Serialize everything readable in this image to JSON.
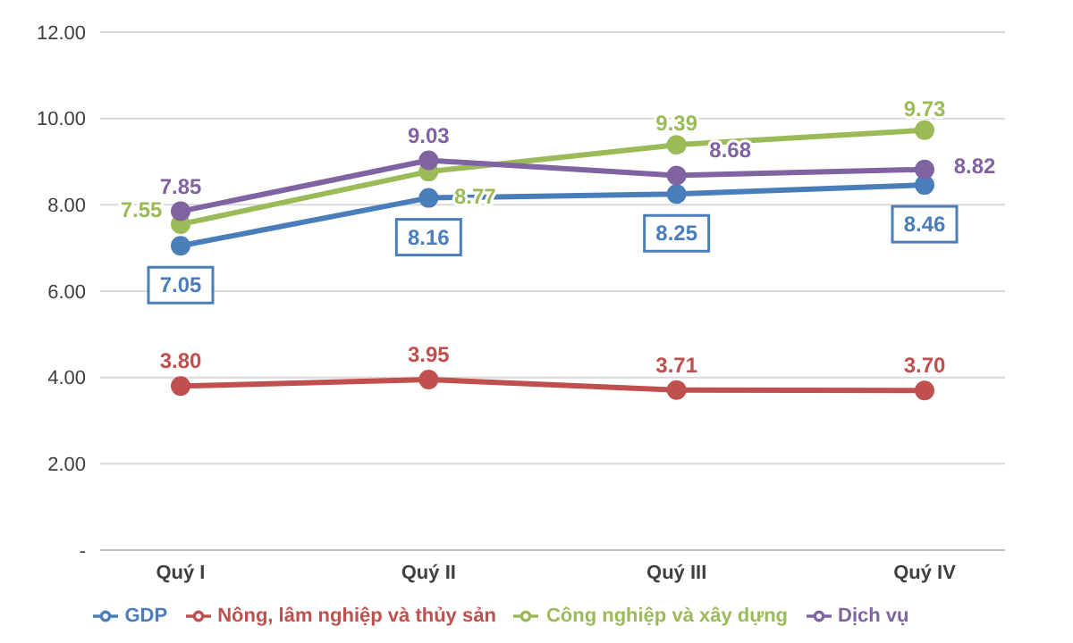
{
  "chart_data": {
    "type": "line",
    "categories": [
      "Quý I",
      "Quý II",
      "Quý III",
      "Quý IV"
    ],
    "series": [
      {
        "name": "GDP",
        "color": "#4a7ebb",
        "values": [
          7.05,
          8.16,
          8.25,
          8.46
        ],
        "value_labels": [
          "7.05",
          "8.16",
          "8.25",
          "8.46"
        ]
      },
      {
        "name": "Nông, lâm nghiệp và thủy sản",
        "color": "#c0504d",
        "values": [
          3.8,
          3.95,
          3.71,
          3.7
        ],
        "value_labels": [
          "3.80",
          "3.95",
          "3.71",
          "3.70"
        ]
      },
      {
        "name": "Công nghiệp và xây dựng",
        "color": "#9bbb59",
        "values": [
          7.55,
          8.77,
          9.39,
          9.73
        ],
        "value_labels": [
          "7.55",
          "8.77",
          "9.39",
          "9.73"
        ]
      },
      {
        "name": "Dịch vụ",
        "color": "#8064a2",
        "values": [
          7.85,
          9.03,
          8.68,
          8.82
        ],
        "value_labels": [
          "7.85",
          "9.03",
          "8.68",
          "8.82"
        ]
      }
    ],
    "ylim": [
      0,
      12
    ],
    "yticks": [
      {
        "value": 0,
        "label": "-"
      },
      {
        "value": 2,
        "label": "2.00"
      },
      {
        "value": 4,
        "label": "4.00"
      },
      {
        "value": 6,
        "label": "6.00"
      },
      {
        "value": 8,
        "label": "8.00"
      },
      {
        "value": 10,
        "label": "10.00"
      },
      {
        "value": 12,
        "label": "12.00"
      }
    ],
    "grid": "y",
    "legend": "bottom",
    "marker": "circle",
    "line_style": "solid"
  }
}
